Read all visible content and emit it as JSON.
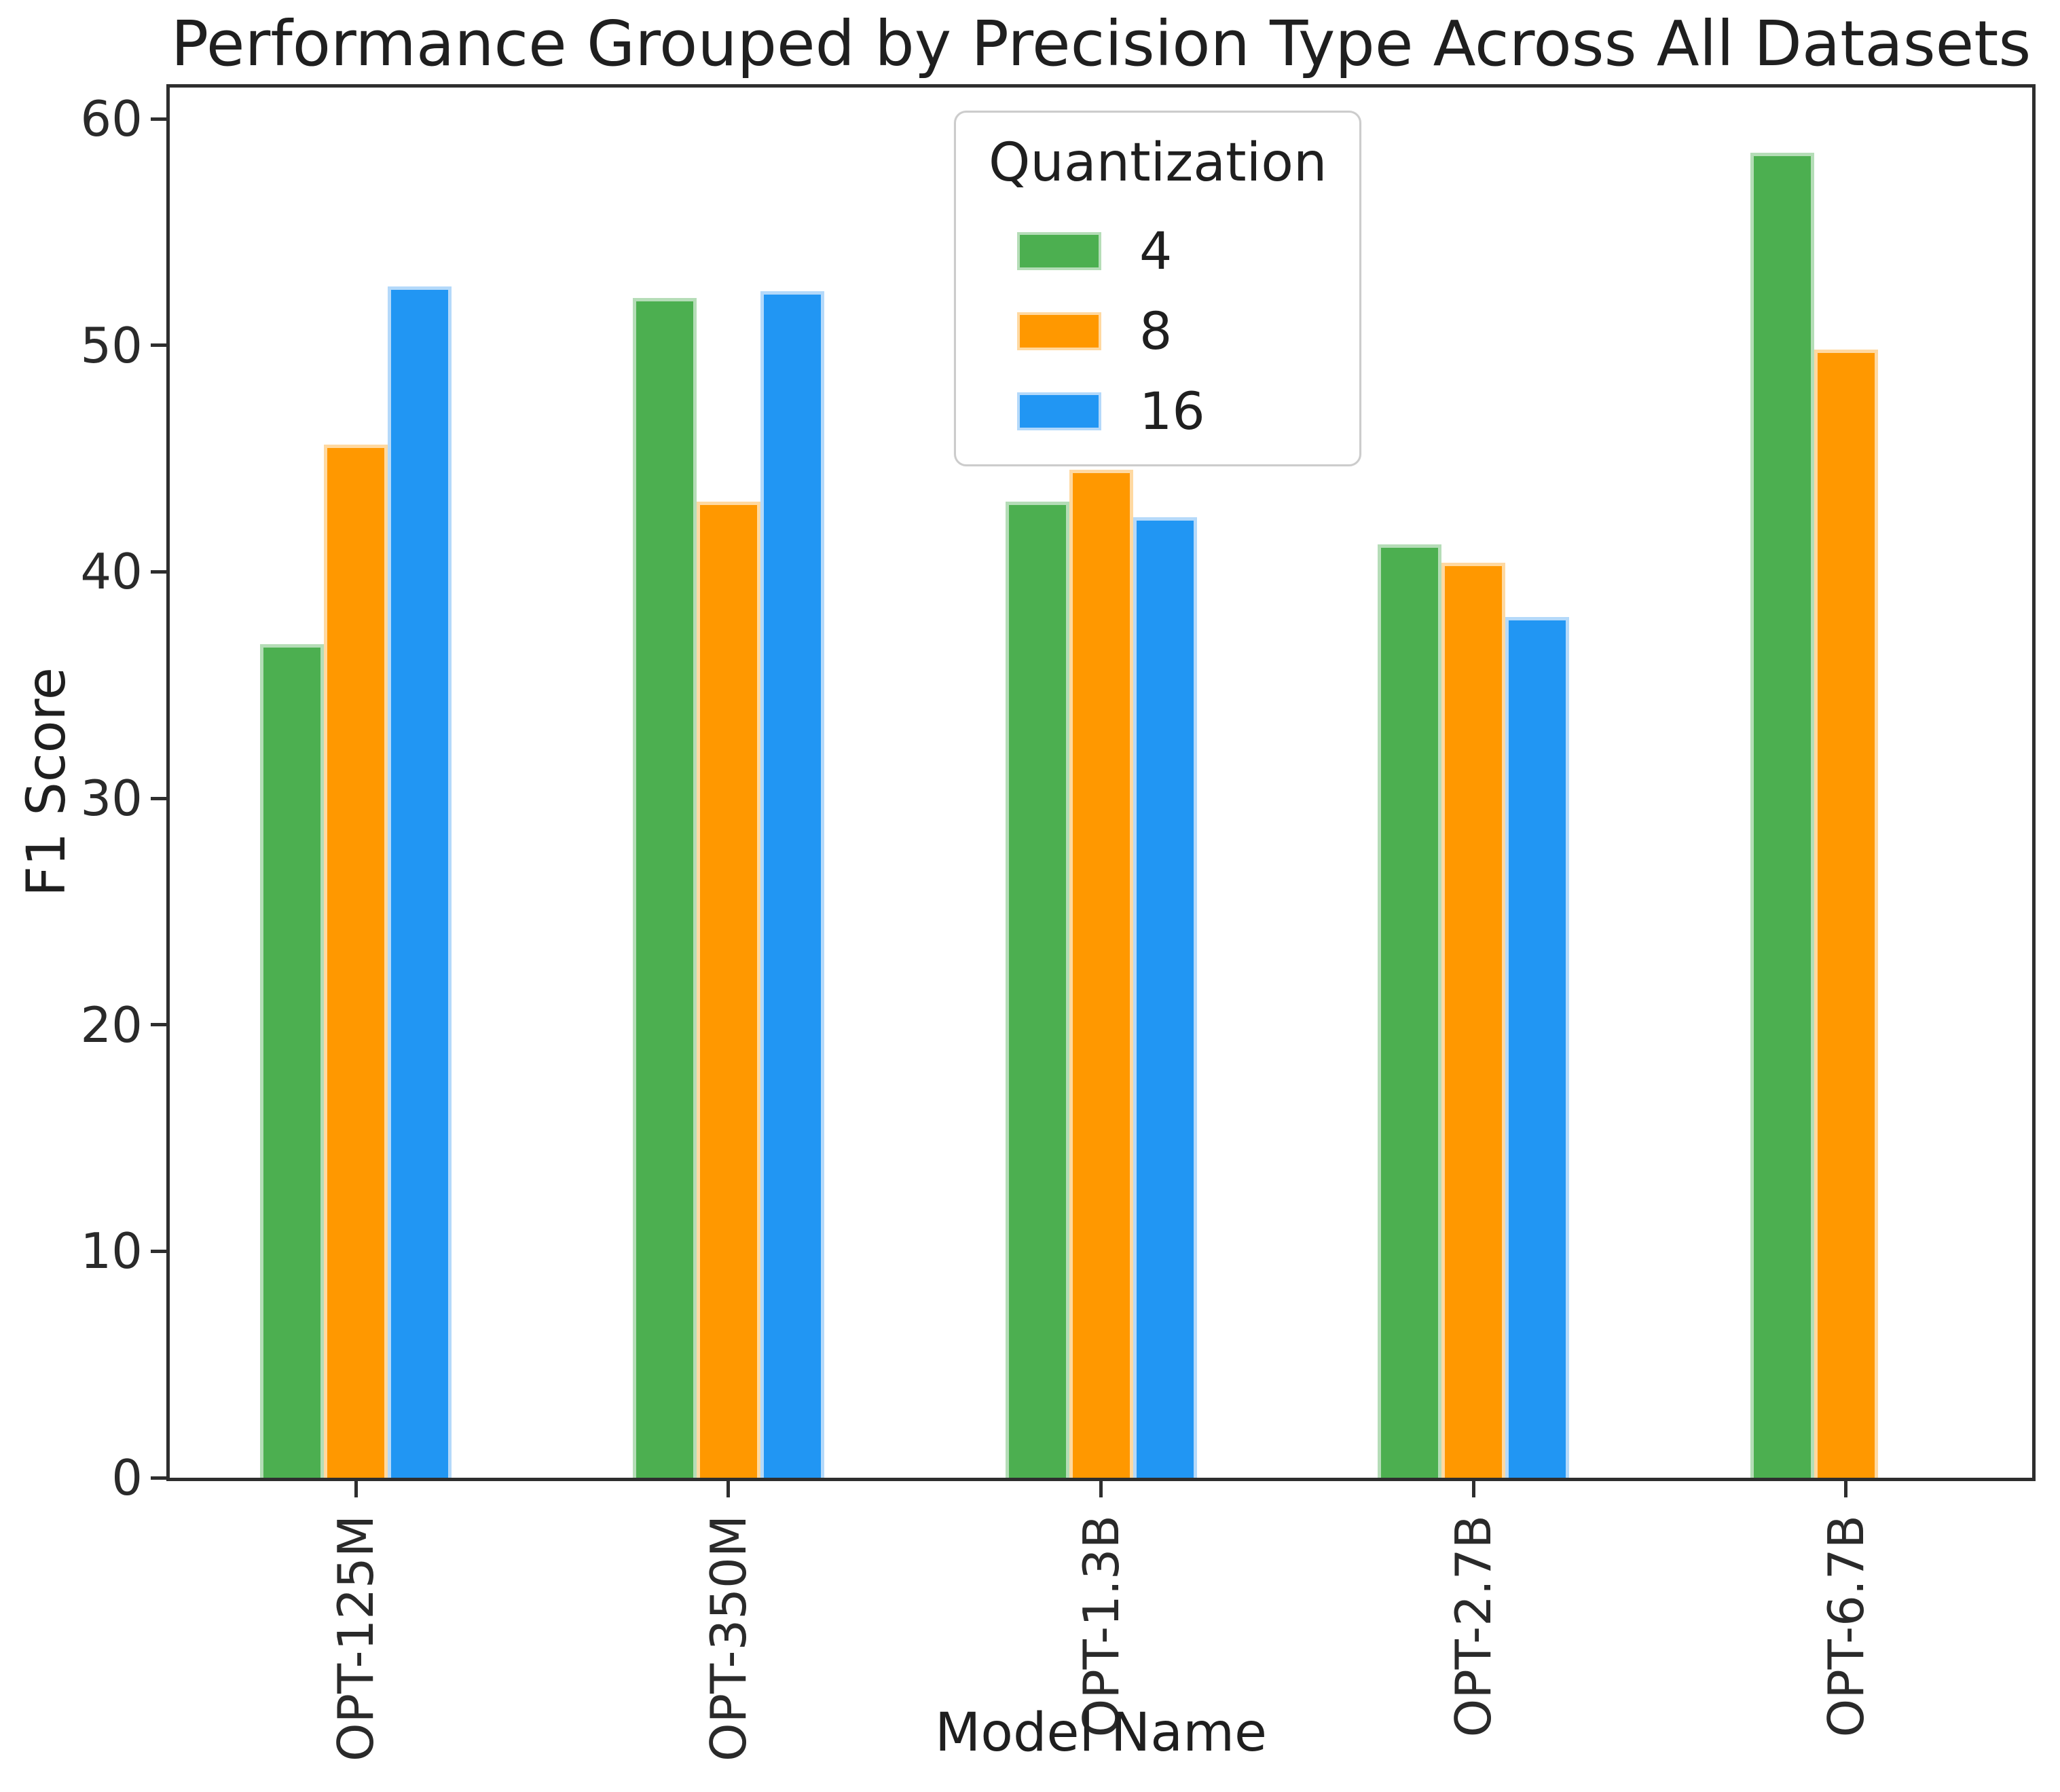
{
  "chart_data": {
    "type": "bar",
    "title": "Performance Grouped by Precision Type Across All Datasets",
    "xlabel": "Model Name",
    "ylabel": "F1 Score",
    "legend_title": "Quantization",
    "legend_position": "upper center inside plot",
    "grid": false,
    "categories": [
      "OPT-125M",
      "OPT-350M",
      "OPT-1.3B",
      "OPT-2.7B",
      "OPT-6.7B"
    ],
    "series": [
      {
        "name": "4",
        "color": "#4caf50",
        "edge_color": "#b5ddb7",
        "values": [
          36.8,
          52.1,
          43.1,
          41.2,
          58.5
        ]
      },
      {
        "name": "8",
        "color": "#ff9800",
        "edge_color": "#ffd9a1",
        "values": [
          45.6,
          43.1,
          44.5,
          40.4,
          49.8
        ]
      },
      {
        "name": "16",
        "color": "#2196f3",
        "edge_color": "#b4d9fa",
        "values": [
          52.6,
          52.4,
          42.4,
          38.0,
          null
        ]
      }
    ],
    "yticks": [
      0,
      10,
      20,
      30,
      40,
      50,
      60
    ],
    "ylim": [
      0,
      61.4
    ]
  }
}
